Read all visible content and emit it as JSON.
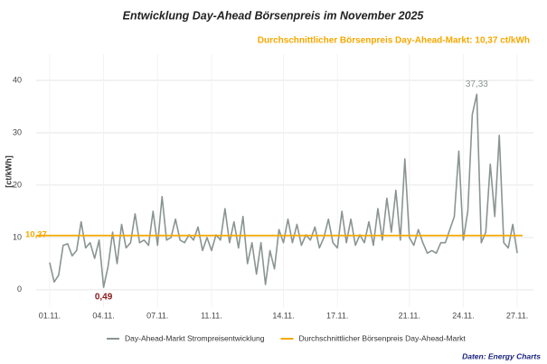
{
  "chart_data": {
    "type": "line",
    "title": "Entwicklung Day-Ahead Börsenpreis im November 2025",
    "subtitle": "Durchschnittlicher Börsenpreis Day-Ahead-Markt: 10,37 ct/kWh",
    "y_label": "[ct/kWh]",
    "source": "Daten: Energy Charts",
    "xlim": [
      0.25,
      27.9
    ],
    "ylim": [
      -3.3,
      45
    ],
    "xticks": [
      {
        "value": 1,
        "label": "01.11."
      },
      {
        "value": 4,
        "label": "04.11."
      },
      {
        "value": 7,
        "label": "07.11."
      },
      {
        "value": 10,
        "label": "11.11."
      },
      {
        "value": 14,
        "label": "14.11."
      },
      {
        "value": 17,
        "label": "17.11."
      },
      {
        "value": 21,
        "label": "21.11."
      },
      {
        "value": 24,
        "label": "24.11."
      },
      {
        "value": 27,
        "label": "27.11."
      }
    ],
    "yticks": [
      0,
      10,
      20,
      30,
      40
    ],
    "grid": true,
    "x": [
      1,
      1.25,
      1.5,
      1.75,
      2,
      2.25,
      2.5,
      2.75,
      3,
      3.25,
      3.5,
      3.75,
      4,
      4.25,
      4.5,
      4.75,
      5,
      5.25,
      5.5,
      5.75,
      6,
      6.25,
      6.5,
      6.75,
      7,
      7.25,
      7.5,
      7.75,
      8,
      8.25,
      8.5,
      8.75,
      9,
      9.25,
      9.5,
      9.75,
      10,
      10.25,
      10.5,
      10.75,
      11,
      11.25,
      11.5,
      11.75,
      12,
      12.25,
      12.5,
      12.75,
      13,
      13.25,
      13.5,
      13.75,
      14,
      14.25,
      14.5,
      14.75,
      15,
      15.25,
      15.5,
      15.75,
      16,
      16.25,
      16.5,
      16.75,
      17,
      17.25,
      17.5,
      17.75,
      18,
      18.25,
      18.5,
      18.75,
      19,
      19.25,
      19.5,
      19.75,
      20,
      20.25,
      20.5,
      20.75,
      21,
      21.25,
      21.5,
      21.75,
      22,
      22.25,
      22.5,
      22.75,
      23,
      23.25,
      23.5,
      23.75,
      24,
      24.25,
      24.5,
      24.75,
      25,
      25.25,
      25.5,
      25.75,
      26,
      26.25,
      26.5,
      26.75,
      27
    ],
    "series": [
      {
        "name": "Day-Ahead-Markt Strompreisentwicklung",
        "color": "#8a9590",
        "values": [
          5.2,
          1.5,
          2.8,
          8.5,
          8.8,
          6.5,
          7.5,
          13,
          8,
          9,
          6,
          9.5,
          0.49,
          4.5,
          11,
          5,
          12.5,
          8,
          9,
          14.5,
          9,
          9.5,
          8.5,
          15,
          8.5,
          17.8,
          9.5,
          10,
          13.5,
          9.5,
          9,
          10.5,
          9.5,
          12,
          7.5,
          10,
          7.5,
          10.5,
          9.5,
          15.5,
          9,
          13,
          8,
          14,
          5,
          9,
          3,
          9,
          1,
          7.5,
          4,
          11.5,
          9,
          13.5,
          9,
          12.5,
          8.5,
          10.5,
          9.5,
          12,
          8,
          10,
          13.5,
          9,
          8,
          15,
          9,
          13.5,
          8.5,
          10.5,
          9,
          13,
          8.5,
          15.5,
          9.5,
          17.5,
          11,
          19,
          9.5,
          25,
          10,
          8.5,
          11.5,
          9,
          7,
          7.5,
          7,
          9,
          9,
          11.5,
          14,
          26.5,
          9.5,
          15,
          33.5,
          37.33,
          9,
          11,
          24,
          14,
          29.5,
          9,
          8,
          12.5,
          7
        ]
      }
    ],
    "reference_line": {
      "name": "Durchschnittlicher Börsenpreis Day-Ahead-Markt",
      "value": 10.37,
      "label": "10,37",
      "color": "#f5a800"
    },
    "annotations": [
      {
        "text": "37,33",
        "x": 24.75,
        "y": 37.33,
        "color": "#8a9590"
      },
      {
        "text": "0,49",
        "x": 4,
        "y": 0.49,
        "color": "#8b1a1a"
      }
    ]
  }
}
